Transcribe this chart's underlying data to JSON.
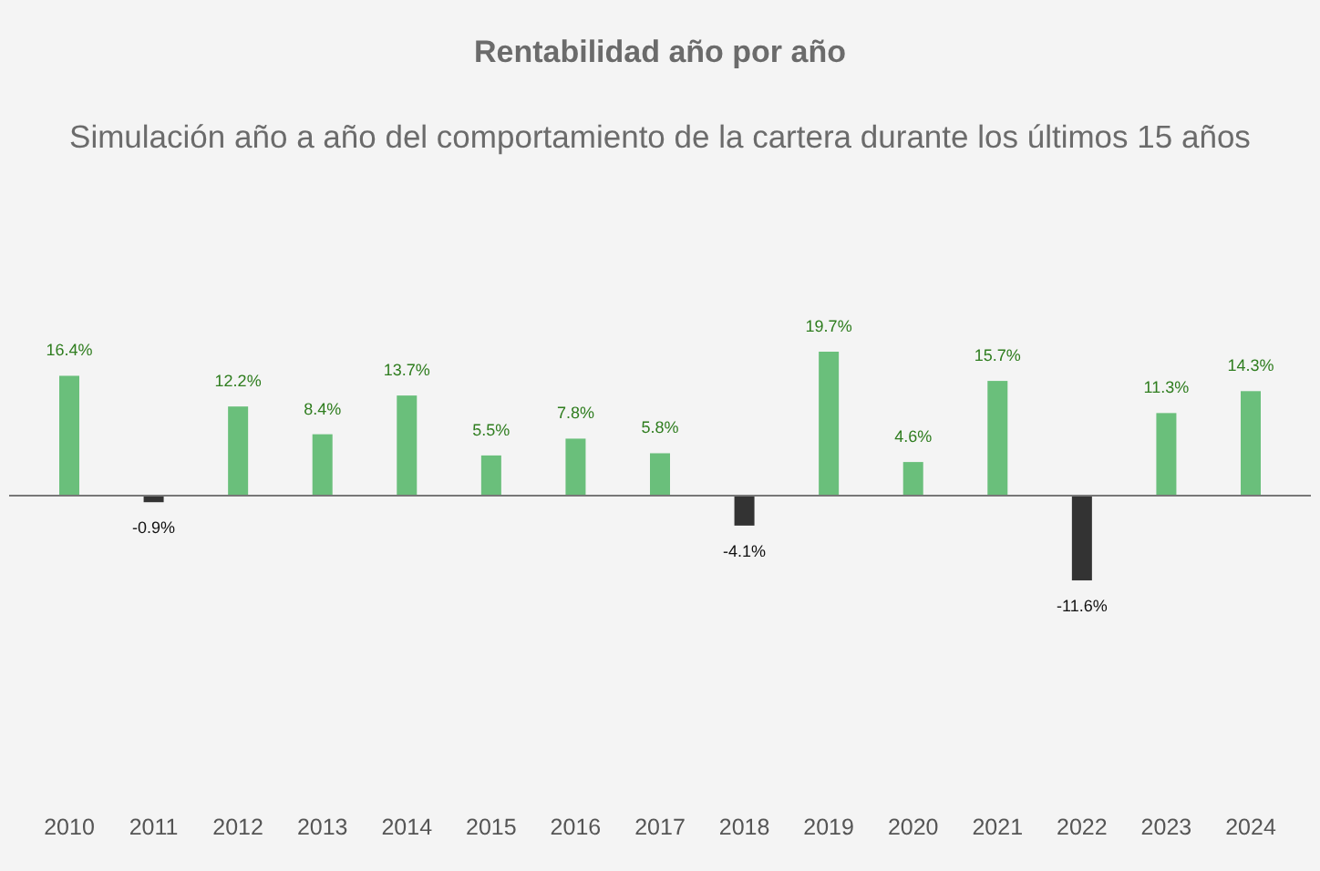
{
  "chart_data": {
    "type": "bar",
    "title": "Rentabilidad año por año",
    "subtitle": "Simulación año a año del comportamiento de la cartera durante los últimos 15 años",
    "categories": [
      "2010",
      "2011",
      "2012",
      "2013",
      "2014",
      "2015",
      "2016",
      "2017",
      "2018",
      "2019",
      "2020",
      "2021",
      "2022",
      "2023",
      "2024"
    ],
    "values": [
      16.4,
      -0.9,
      12.2,
      8.4,
      13.7,
      5.5,
      7.8,
      5.8,
      -4.1,
      19.7,
      4.6,
      15.7,
      -11.6,
      11.3,
      14.3
    ],
    "colors": [
      "#6abf7b",
      "#333333",
      "#6abf7b",
      "#6abf7b",
      "#6abf7b",
      "#6abf7b",
      "#6abf7b",
      "#6abf7b",
      "#333333",
      "#6abf7b",
      "#6abf7b",
      "#6abf7b",
      "#333333",
      "#6abf7b",
      "#6abf7b"
    ],
    "value_labels": [
      "16.4%",
      "-0.9%",
      "12.2%",
      "8.4%",
      "13.7%",
      "5.5%",
      "7.8%",
      "5.8%",
      "-4.1%",
      "19.7%",
      "4.6%",
      "15.7%",
      "-11.6%",
      "11.3%",
      "14.3%"
    ],
    "data_labels": false
  }
}
